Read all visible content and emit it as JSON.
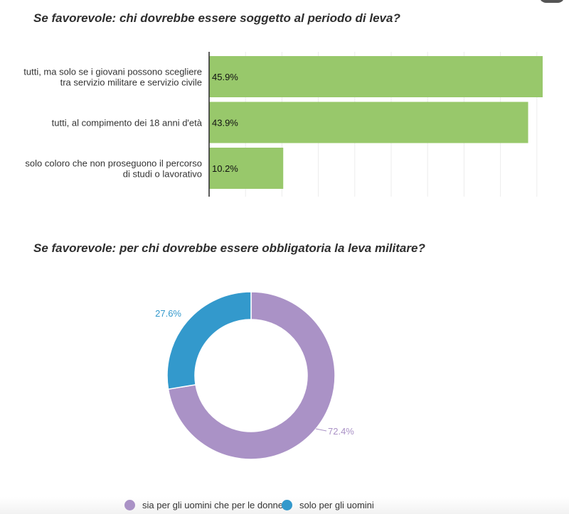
{
  "chart_data": [
    {
      "type": "bar",
      "orientation": "horizontal",
      "title": "Se favorevole: chi dovrebbe essere soggetto al periodo di leva?",
      "categories": [
        [
          "tutti, ma solo se i giovani possono scegliere",
          "tra servizio militare e servizio civile"
        ],
        [
          "tutti, al compimento dei 18 anni d'età"
        ],
        [
          "solo coloro che non proseguono il percorso",
          "di studi o lavorativo"
        ]
      ],
      "values": [
        45.9,
        43.9,
        10.2
      ],
      "value_labels": [
        "45.9%",
        "43.9%",
        "10.2%"
      ],
      "xlim": [
        0,
        46
      ],
      "grid": true,
      "color": "#98c86b"
    },
    {
      "type": "pie",
      "donut": true,
      "title": "Se favorevole: per chi dovrebbe essere obbligatoria la leva militare?",
      "labels": [
        "sia per gli uomini che per le donne",
        "solo per gli uomini"
      ],
      "values": [
        72.4,
        27.6
      ],
      "value_labels": [
        "72.4%",
        "27.6%"
      ],
      "colors": [
        "#aa92c6",
        "#3399cc"
      ],
      "legend": "bottom"
    }
  ]
}
